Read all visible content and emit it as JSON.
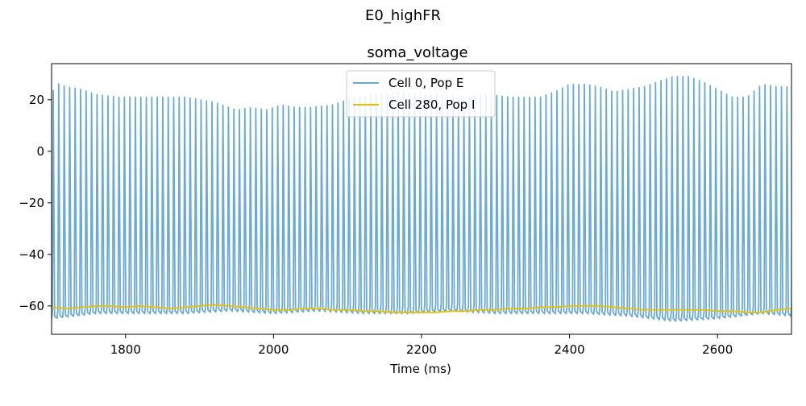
{
  "figure": {
    "suptitle": "E0_highFR"
  },
  "chart_data": {
    "type": "line",
    "title": "soma_voltage",
    "xlabel": "Time (ms)",
    "ylabel": "",
    "xlim": [
      1700,
      2700
    ],
    "ylim": [
      -71,
      34
    ],
    "xticks": [
      1800,
      2000,
      2200,
      2400,
      2600
    ],
    "yticks": [
      -60,
      -40,
      -20,
      0,
      20
    ],
    "grid": false,
    "legend_position": "top-center",
    "spike_period_ms": 7.4,
    "series": [
      {
        "name": "Cell 0, Pop E",
        "color": "#6aaad4",
        "style": "spiking",
        "peak_envelope": {
          "t": [
            1700,
            1705,
            1710,
            1720,
            1740,
            1760,
            1790,
            1820,
            1850,
            1880,
            1900,
            1920,
            1950,
            1970,
            1990,
            2010,
            2030,
            2050,
            2080,
            2110,
            2140,
            2170,
            2200,
            2230,
            2260,
            2290,
            2320,
            2340,
            2360,
            2380,
            2400,
            2420,
            2440,
            2460,
            2480,
            2500,
            2520,
            2540,
            2560,
            2580,
            2600,
            2620,
            2640,
            2660,
            2680,
            2700
          ],
          "v": [
            20,
            28,
            26,
            25,
            24,
            22,
            21,
            21,
            21,
            21,
            20,
            19,
            16,
            17,
            16,
            18,
            17,
            17,
            18,
            21,
            22,
            23,
            22,
            22,
            21,
            22,
            21,
            21,
            21,
            23,
            26,
            26,
            25,
            23,
            24,
            25,
            27,
            29,
            29,
            27,
            24,
            21,
            21,
            26,
            25,
            25
          ]
        },
        "trough_envelope": {
          "t": [
            1700,
            1760,
            1820,
            1880,
            1940,
            2000,
            2060,
            2120,
            2180,
            2240,
            2300,
            2360,
            2420,
            2480,
            2540,
            2600,
            2660,
            2700
          ],
          "v": [
            -65,
            -63,
            -63,
            -63,
            -62,
            -63,
            -62,
            -63,
            -63,
            -62,
            -63,
            -63,
            -63,
            -64,
            -66,
            -65,
            -63,
            -64
          ]
        }
      },
      {
        "name": "Cell 280, Pop I",
        "color": "#e6c100",
        "style": "line",
        "x": [
          1700,
          1720,
          1740,
          1760,
          1780,
          1800,
          1820,
          1840,
          1860,
          1880,
          1900,
          1920,
          1940,
          1960,
          1980,
          2000,
          2020,
          2040,
          2060,
          2080,
          2100,
          2120,
          2140,
          2160,
          2180,
          2200,
          2220,
          2240,
          2260,
          2280,
          2300,
          2320,
          2340,
          2360,
          2380,
          2400,
          2420,
          2440,
          2460,
          2480,
          2500,
          2520,
          2540,
          2560,
          2580,
          2600,
          2620,
          2640,
          2660,
          2680,
          2700
        ],
        "y": [
          -60.5,
          -61,
          -60.5,
          -60,
          -60,
          -60.5,
          -60,
          -60.5,
          -61,
          -60.5,
          -60,
          -59.5,
          -60,
          -60.5,
          -61,
          -61.5,
          -61.5,
          -61,
          -61,
          -61.5,
          -61.5,
          -62,
          -62,
          -62.5,
          -62.5,
          -62.5,
          -62.5,
          -62,
          -62,
          -61.5,
          -61.5,
          -61,
          -61,
          -60.5,
          -60.5,
          -60,
          -60,
          -60,
          -60.5,
          -61,
          -61.5,
          -61.5,
          -61.5,
          -61.5,
          -61.5,
          -62,
          -62,
          -62.5,
          -62.5,
          -61.5,
          -61
        ]
      }
    ]
  }
}
